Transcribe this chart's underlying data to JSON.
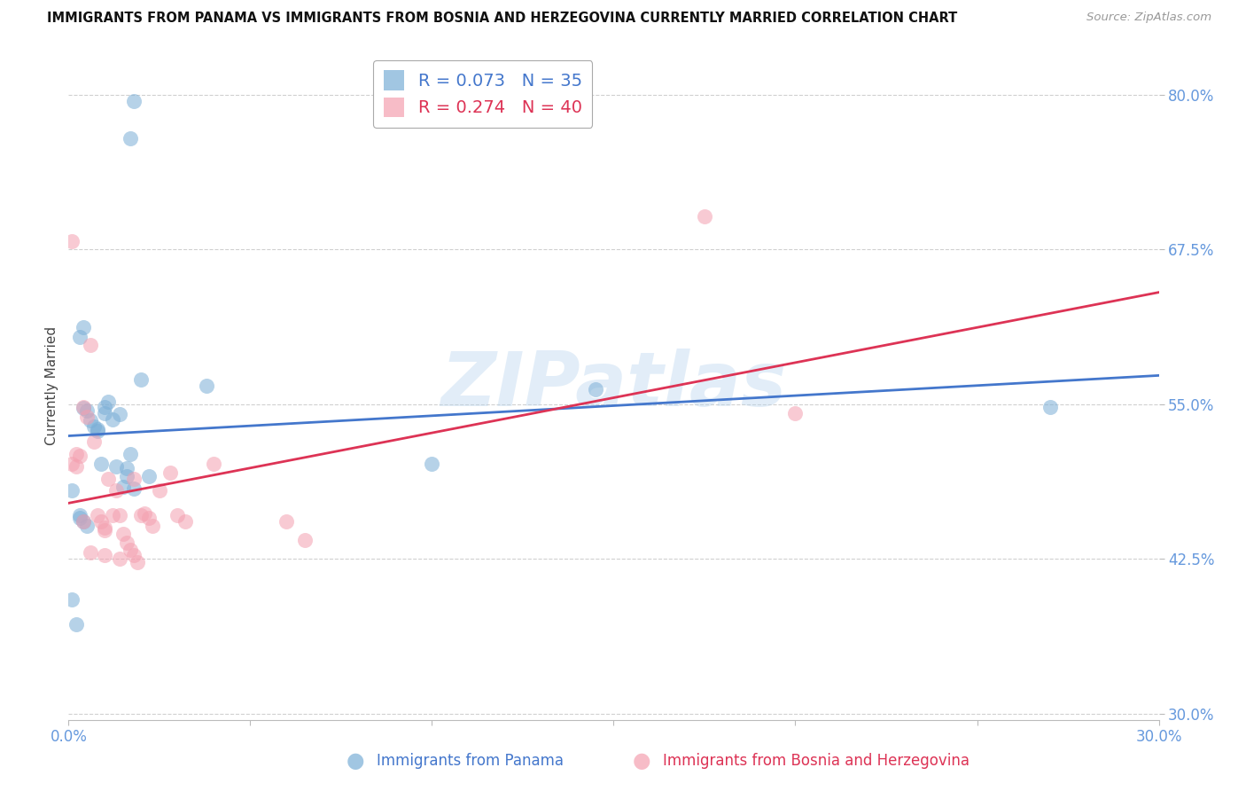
{
  "title": "IMMIGRANTS FROM PANAMA VS IMMIGRANTS FROM BOSNIA AND HERZEGOVINA CURRENTLY MARRIED CORRELATION CHART",
  "source": "Source: ZipAtlas.com",
  "ylabel": "Currently Married",
  "xlim": [
    0.0,
    0.3
  ],
  "ylim": [
    0.295,
    0.835
  ],
  "xticks": [
    0.0,
    0.05,
    0.1,
    0.15,
    0.2,
    0.25,
    0.3
  ],
  "xtick_labels": [
    "0.0%",
    "",
    "",
    "",
    "",
    "",
    "30.0%"
  ],
  "yticks": [
    0.3,
    0.425,
    0.55,
    0.675,
    0.8
  ],
  "ytick_labels": [
    "30.0%",
    "42.5%",
    "55.0%",
    "67.5%",
    "80.0%"
  ],
  "background_color": "#ffffff",
  "grid_color": "#d0d0d0",
  "panama_color": "#7aaed6",
  "bosnia_color": "#f4a0b0",
  "line_panama_color": "#4477cc",
  "line_bosnia_color": "#dd3355",
  "tick_color": "#6699dd",
  "panama_R": 0.073,
  "panama_N": 35,
  "bosnia_R": 0.274,
  "bosnia_N": 40,
  "legend_label1": "Immigrants from Panama",
  "legend_label2": "Immigrants from Bosnia and Herzegovina",
  "watermark": "ZIPatlas",
  "panama_x": [
    0.001,
    0.018,
    0.017,
    0.004,
    0.003,
    0.004,
    0.005,
    0.006,
    0.007,
    0.008,
    0.008,
    0.009,
    0.01,
    0.01,
    0.011,
    0.012,
    0.013,
    0.014,
    0.015,
    0.016,
    0.016,
    0.017,
    0.018,
    0.02,
    0.022,
    0.038,
    0.1,
    0.145,
    0.27,
    0.001,
    0.002,
    0.003,
    0.003,
    0.004,
    0.005
  ],
  "panama_y": [
    0.48,
    0.795,
    0.765,
    0.612,
    0.604,
    0.547,
    0.545,
    0.537,
    0.532,
    0.53,
    0.528,
    0.502,
    0.548,
    0.543,
    0.552,
    0.538,
    0.5,
    0.542,
    0.483,
    0.492,
    0.498,
    0.51,
    0.482,
    0.57,
    0.492,
    0.565,
    0.502,
    0.562,
    0.548,
    0.392,
    0.372,
    0.46,
    0.458,
    0.455,
    0.452
  ],
  "bosnia_x": [
    0.001,
    0.002,
    0.003,
    0.004,
    0.005,
    0.006,
    0.007,
    0.008,
    0.009,
    0.01,
    0.01,
    0.011,
    0.012,
    0.013,
    0.014,
    0.015,
    0.016,
    0.017,
    0.018,
    0.019,
    0.02,
    0.021,
    0.022,
    0.023,
    0.025,
    0.028,
    0.03,
    0.032,
    0.04,
    0.06,
    0.065,
    0.175,
    0.001,
    0.002,
    0.004,
    0.006,
    0.01,
    0.014,
    0.018,
    0.2
  ],
  "bosnia_y": [
    0.502,
    0.51,
    0.508,
    0.548,
    0.54,
    0.598,
    0.52,
    0.46,
    0.455,
    0.45,
    0.448,
    0.49,
    0.46,
    0.48,
    0.46,
    0.445,
    0.438,
    0.432,
    0.428,
    0.422,
    0.46,
    0.462,
    0.458,
    0.452,
    0.48,
    0.495,
    0.46,
    0.455,
    0.502,
    0.455,
    0.44,
    0.702,
    0.682,
    0.5,
    0.455,
    0.43,
    0.428,
    0.425,
    0.49,
    0.543
  ]
}
